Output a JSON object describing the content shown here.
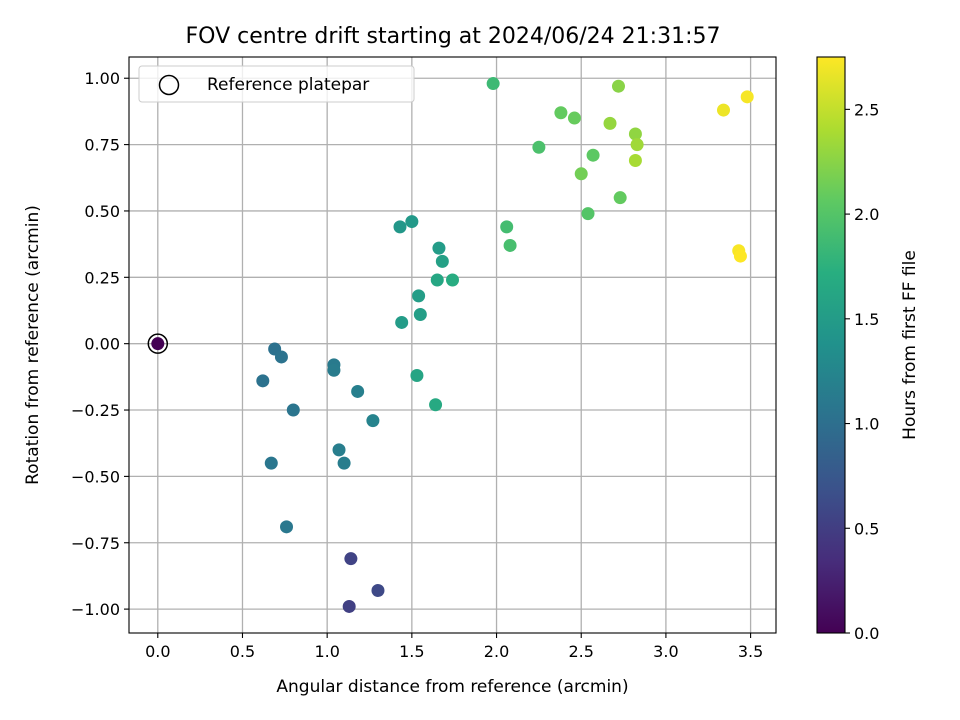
{
  "chart_data": {
    "type": "scatter",
    "title": "FOV centre drift starting at 2024/06/24 21:31:57",
    "xlabel": "Angular distance from reference (arcmin)",
    "ylabel": "Rotation from reference (arcmin)",
    "xlim": [
      -0.17,
      3.65
    ],
    "ylim": [
      -1.09,
      1.08
    ],
    "x_ticks": [
      0.0,
      0.5,
      1.0,
      1.5,
      2.0,
      2.5,
      3.0,
      3.5
    ],
    "x_tick_labels": [
      "0.0",
      "0.5",
      "1.0",
      "1.5",
      "2.0",
      "2.5",
      "3.0",
      "3.5"
    ],
    "y_ticks": [
      -1.0,
      -0.75,
      -0.5,
      -0.25,
      0.0,
      0.25,
      0.5,
      0.75,
      1.0
    ],
    "y_tick_labels": [
      "−1.00",
      "−0.75",
      "−0.50",
      "−0.25",
      "0.00",
      "0.25",
      "0.50",
      "0.75",
      "1.00"
    ],
    "grid": true,
    "colormap": "viridis",
    "colorbar": {
      "label": "Hours from first FF file",
      "range": [
        0.0,
        2.75
      ],
      "ticks": [
        0.0,
        0.5,
        1.0,
        1.5,
        2.0,
        2.5
      ],
      "tick_labels": [
        "0.0",
        "0.5",
        "1.0",
        "1.5",
        "2.0",
        "2.5"
      ]
    },
    "legend": {
      "placement": "upper-left",
      "entries": [
        "Reference platepar"
      ]
    },
    "reference_point": {
      "x": 0.0,
      "y": 0.0
    },
    "points": [
      {
        "x": 0.0,
        "y": 0.0,
        "c": 0.0
      },
      {
        "x": 1.13,
        "y": -0.99,
        "c": 0.52
      },
      {
        "x": 1.3,
        "y": -0.93,
        "c": 0.6
      },
      {
        "x": 1.14,
        "y": -0.81,
        "c": 0.55
      },
      {
        "x": 0.69,
        "y": -0.02,
        "c": 1.02
      },
      {
        "x": 0.73,
        "y": -0.05,
        "c": 1.04
      },
      {
        "x": 0.62,
        "y": -0.14,
        "c": 1.03
      },
      {
        "x": 0.8,
        "y": -0.25,
        "c": 1.06
      },
      {
        "x": 0.67,
        "y": -0.45,
        "c": 1.08
      },
      {
        "x": 0.76,
        "y": -0.69,
        "c": 1.1
      },
      {
        "x": 1.04,
        "y": -0.08,
        "c": 1.12
      },
      {
        "x": 1.04,
        "y": -0.1,
        "c": 1.14
      },
      {
        "x": 1.18,
        "y": -0.18,
        "c": 1.18
      },
      {
        "x": 1.07,
        "y": -0.4,
        "c": 1.16
      },
      {
        "x": 1.1,
        "y": -0.45,
        "c": 1.15
      },
      {
        "x": 1.27,
        "y": -0.29,
        "c": 1.22
      },
      {
        "x": 1.43,
        "y": 0.44,
        "c": 1.45
      },
      {
        "x": 1.5,
        "y": 0.46,
        "c": 1.47
      },
      {
        "x": 1.44,
        "y": 0.08,
        "c": 1.5
      },
      {
        "x": 1.54,
        "y": 0.18,
        "c": 1.52
      },
      {
        "x": 1.55,
        "y": 0.11,
        "c": 1.53
      },
      {
        "x": 1.53,
        "y": -0.12,
        "c": 1.6
      },
      {
        "x": 1.64,
        "y": -0.23,
        "c": 1.66
      },
      {
        "x": 1.66,
        "y": 0.36,
        "c": 1.5
      },
      {
        "x": 1.68,
        "y": 0.31,
        "c": 1.55
      },
      {
        "x": 1.65,
        "y": 0.24,
        "c": 1.62
      },
      {
        "x": 1.74,
        "y": 0.24,
        "c": 1.7
      },
      {
        "x": 2.06,
        "y": 0.44,
        "c": 1.9
      },
      {
        "x": 2.08,
        "y": 0.37,
        "c": 1.92
      },
      {
        "x": 1.98,
        "y": 0.98,
        "c": 1.86
      },
      {
        "x": 2.25,
        "y": 0.74,
        "c": 1.95
      },
      {
        "x": 2.38,
        "y": 0.87,
        "c": 2.08
      },
      {
        "x": 2.46,
        "y": 0.85,
        "c": 2.1
      },
      {
        "x": 2.5,
        "y": 0.64,
        "c": 2.15
      },
      {
        "x": 2.57,
        "y": 0.71,
        "c": 2.05
      },
      {
        "x": 2.54,
        "y": 0.49,
        "c": 2.0
      },
      {
        "x": 2.67,
        "y": 0.83,
        "c": 2.3
      },
      {
        "x": 2.72,
        "y": 0.97,
        "c": 2.25
      },
      {
        "x": 2.73,
        "y": 0.55,
        "c": 2.08
      },
      {
        "x": 2.82,
        "y": 0.79,
        "c": 2.28
      },
      {
        "x": 2.83,
        "y": 0.75,
        "c": 2.35
      },
      {
        "x": 2.82,
        "y": 0.69,
        "c": 2.38
      },
      {
        "x": 3.34,
        "y": 0.88,
        "c": 2.68
      },
      {
        "x": 3.48,
        "y": 0.93,
        "c": 2.72
      },
      {
        "x": 3.43,
        "y": 0.35,
        "c": 2.73
      },
      {
        "x": 3.44,
        "y": 0.33,
        "c": 2.75
      }
    ]
  }
}
